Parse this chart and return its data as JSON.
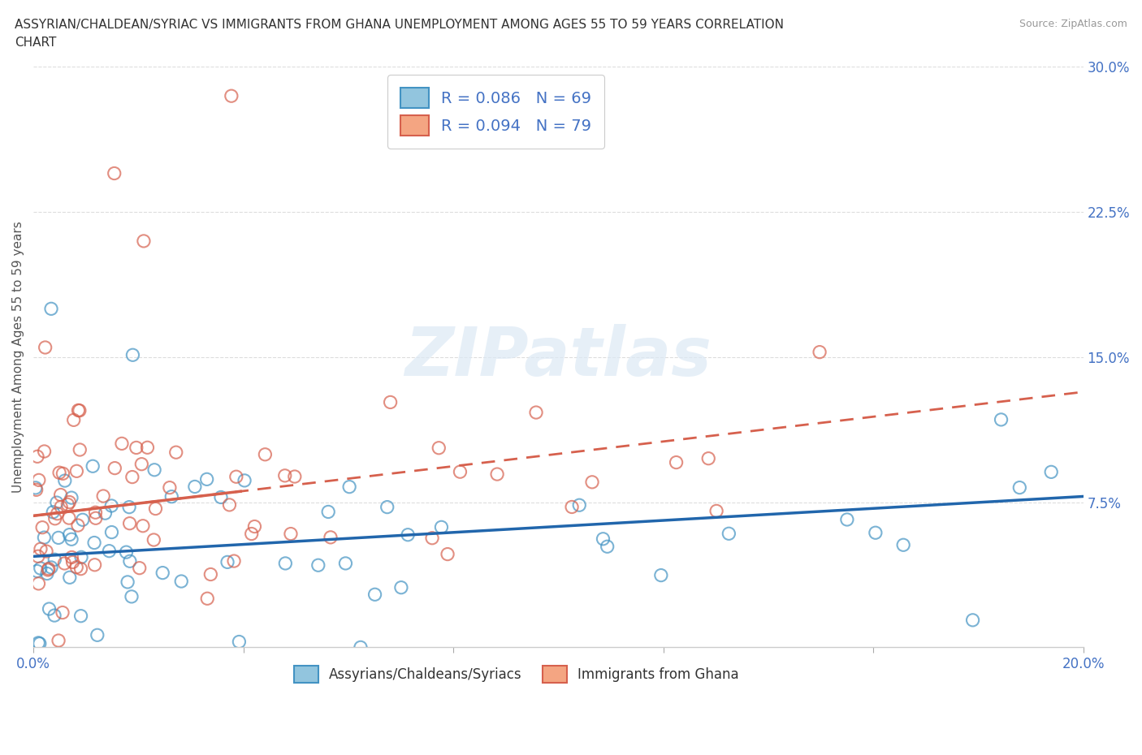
{
  "title_line1": "ASSYRIAN/CHALDEAN/SYRIAC VS IMMIGRANTS FROM GHANA UNEMPLOYMENT AMONG AGES 55 TO 59 YEARS CORRELATION",
  "title_line2": "CHART",
  "source_text": "Source: ZipAtlas.com",
  "ylabel": "Unemployment Among Ages 55 to 59 years",
  "xlim": [
    0.0,
    0.2
  ],
  "ylim": [
    0.0,
    0.3
  ],
  "blue_color": "#92c5de",
  "blue_edge_color": "#4393c3",
  "pink_color": "#f4a582",
  "pink_edge_color": "#d6604d",
  "blue_line_color": "#2166ac",
  "pink_line_color": "#d6604d",
  "watermark_text": "ZIPatlas",
  "legend_text_blue": "R = 0.086   N = 69",
  "legend_text_pink": "R = 0.094   N = 79",
  "legend_color": "#4472c4",
  "blue_intercept": 0.047,
  "blue_slope": 0.155,
  "pink_intercept": 0.068,
  "pink_slope": 0.32,
  "background_color": "#ffffff",
  "grid_color": "#dddddd",
  "tick_label_color": "#4472c4",
  "axis_label_color": "#555555",
  "bottom_legend_label_blue": "Assyrians/Chaldeans/Syriacs",
  "bottom_legend_label_pink": "Immigrants from Ghana"
}
